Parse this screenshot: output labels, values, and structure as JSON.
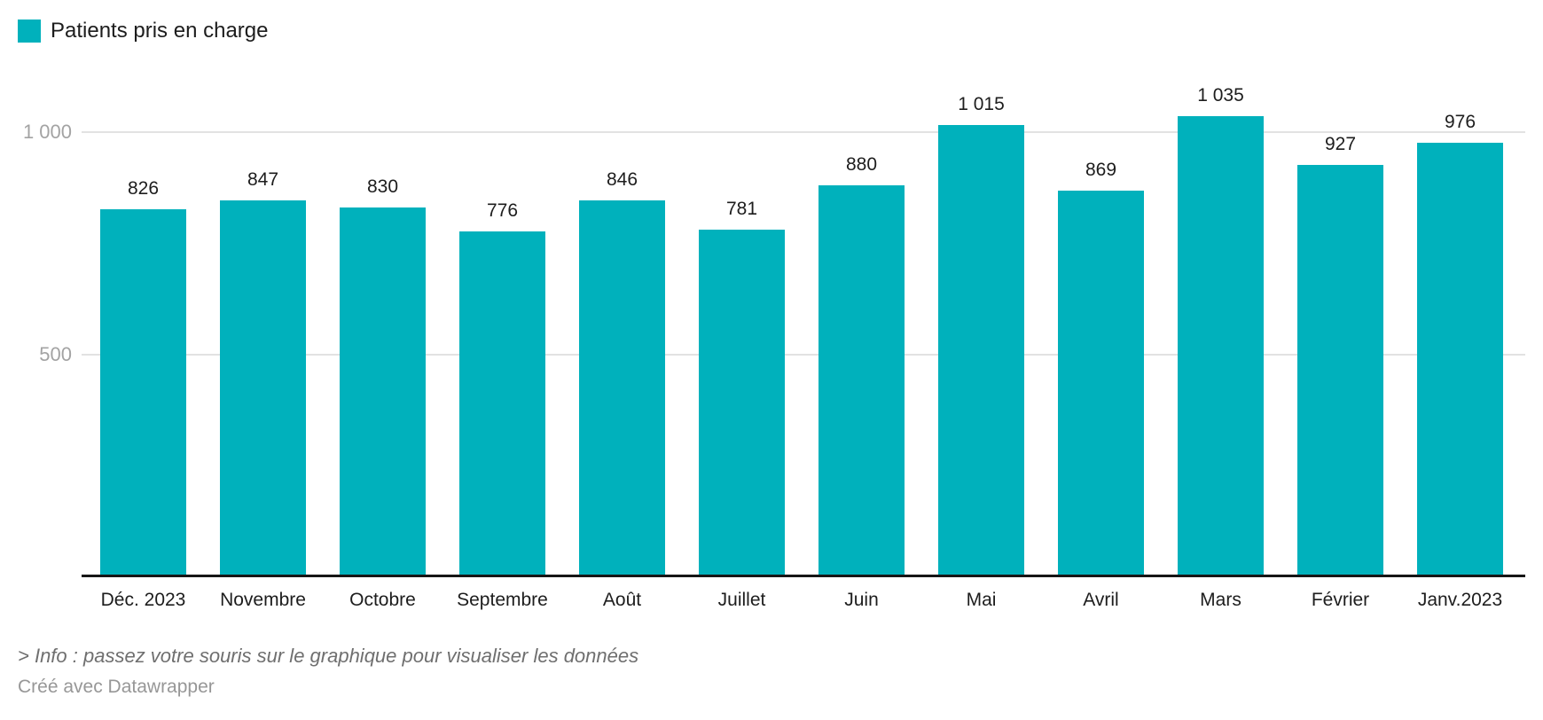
{
  "legend": {
    "label": "Patients pris en charge"
  },
  "chart_data": {
    "type": "bar",
    "title": "Patients pris en charge",
    "xlabel": "",
    "ylabel": "",
    "categories": [
      "Déc. 2023",
      "Novembre",
      "Octobre",
      "Septembre",
      "Août",
      "Juillet",
      "Juin",
      "Mai",
      "Avril",
      "Mars",
      "Février",
      "Janv.2023"
    ],
    "values": [
      826,
      847,
      830,
      776,
      846,
      781,
      880,
      1015,
      869,
      1035,
      927,
      976
    ],
    "value_labels": [
      "826",
      "847",
      "830",
      "776",
      "846",
      "781",
      "880",
      "1 015",
      "869",
      "1 035",
      "927",
      "976"
    ],
    "series": [
      {
        "name": "Patients pris en charge",
        "values": [
          826,
          847,
          830,
          776,
          846,
          781,
          880,
          1015,
          869,
          1035,
          927,
          976
        ]
      }
    ],
    "y_ticks": [
      {
        "value": 500,
        "label": "500"
      },
      {
        "value": 1000,
        "label": "1 000"
      }
    ],
    "ylim": [
      0,
      1115
    ],
    "grid": true,
    "legend_position": "top-left",
    "bar_color": "#00b1bc"
  },
  "footer": {
    "info": "> Info : passez votre souris sur le graphique pour visualiser les données",
    "credit": "Créé avec Datawrapper"
  },
  "colors": {
    "bar": "#00b1bc",
    "axis_line": "#161616",
    "gridline": "#e2e2e2",
    "y_tick_label": "#a3a3a3",
    "label_text": "#1d1d1d",
    "info_text": "#6f6f6f",
    "credit_text": "#979797",
    "background": "#ffffff"
  }
}
